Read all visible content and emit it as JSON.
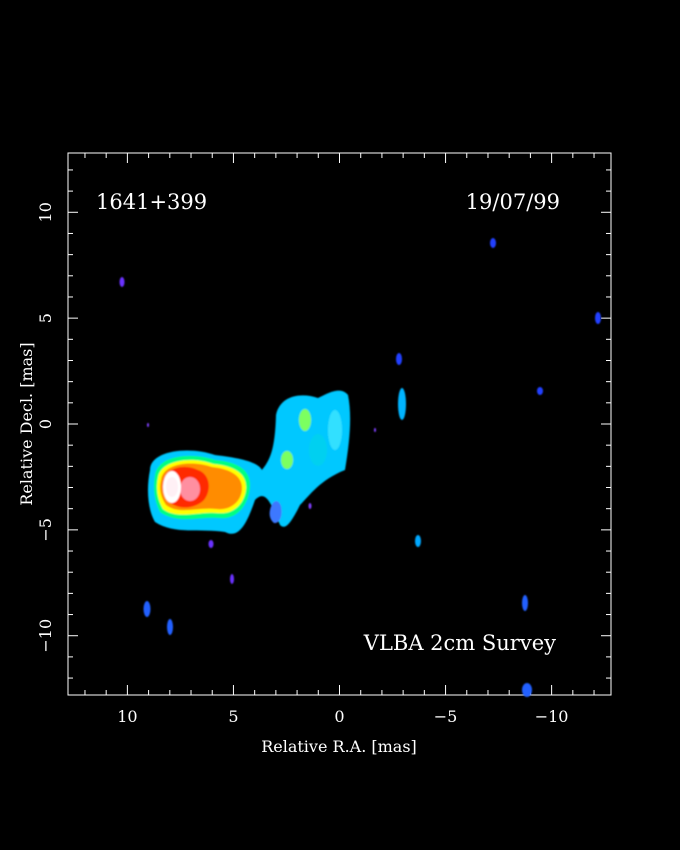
{
  "chart_data": {
    "type": "heatmap",
    "source_name": "1641+399",
    "date": "19/07/99",
    "survey": "VLBA 2cm Survey",
    "xlabel": "Relative R.A. [mas]",
    "ylabel": "Relative Decl. [mas]",
    "xlim": [
      12.8,
      -12.8
    ],
    "ylim": [
      -12.8,
      12.8
    ],
    "x_ticks": [
      "10",
      "5",
      "0",
      "−5",
      "−10"
    ],
    "y_ticks": [
      "−10",
      "−5",
      "0",
      "5",
      "10"
    ],
    "x_tick_values": [
      10,
      5,
      0,
      -5,
      -10
    ],
    "y_tick_values": [
      -10,
      -5,
      0,
      5,
      10
    ],
    "colormap": [
      "#1a1aff",
      "#00c8ff",
      "#00ff80",
      "#ffff00",
      "#ff8000",
      "#ff0000",
      "#ffffff"
    ],
    "components": [
      {
        "ra": 8.3,
        "dec": -3.0,
        "peak": "white",
        "flux_level": 7
      },
      {
        "ra": 7.1,
        "dec": -3.1,
        "peak": "pink",
        "flux_level": 6
      },
      {
        "ra": 5.3,
        "dec": -3.2,
        "peak": "orange",
        "flux_level": 5
      },
      {
        "ra": 2.6,
        "dec": -1.8,
        "peak": "green",
        "flux_level": 3
      },
      {
        "ra": 1.6,
        "dec": -0.1,
        "peak": "green",
        "flux_level": 3
      },
      {
        "ra": 0.3,
        "dec": -0.5,
        "peak": "cyan",
        "flux_level": 2
      },
      {
        "ra": -2.9,
        "dec": 0.8,
        "peak": "cyan",
        "flux_level": 2
      },
      {
        "ra": -3.7,
        "dec": -5.5,
        "peak": "cyan",
        "flux_level": 2
      },
      {
        "ra": -7.3,
        "dec": 8.5,
        "peak": "blue",
        "flux_level": 1
      },
      {
        "ra": -12.0,
        "dec": 4.9,
        "peak": "blue",
        "flux_level": 1
      },
      {
        "ra": -9.5,
        "dec": 1.5,
        "peak": "blue",
        "flux_level": 1
      },
      {
        "ra": -2.8,
        "dec": 3.0,
        "peak": "blue",
        "flux_level": 1
      },
      {
        "ra": 10.2,
        "dec": 6.7,
        "peak": "violet",
        "flux_level": 1
      },
      {
        "ra": 9.1,
        "dec": -8.7,
        "peak": "blue",
        "flux_level": 1
      },
      {
        "ra": 7.9,
        "dec": -9.7,
        "peak": "blue",
        "flux_level": 1
      },
      {
        "ra": 5.0,
        "dec": -7.3,
        "peak": "violet",
        "flux_level": 1
      },
      {
        "ra": 6.0,
        "dec": -5.7,
        "peak": "violet",
        "flux_level": 1
      },
      {
        "ra": -8.8,
        "dec": -8.5,
        "peak": "blue",
        "flux_level": 1
      },
      {
        "ra": -8.8,
        "dec": -12.4,
        "peak": "blue",
        "flux_level": 1
      },
      {
        "ra": 3.1,
        "dec": -4.4,
        "peak": "blue",
        "flux_level": 1
      }
    ]
  }
}
